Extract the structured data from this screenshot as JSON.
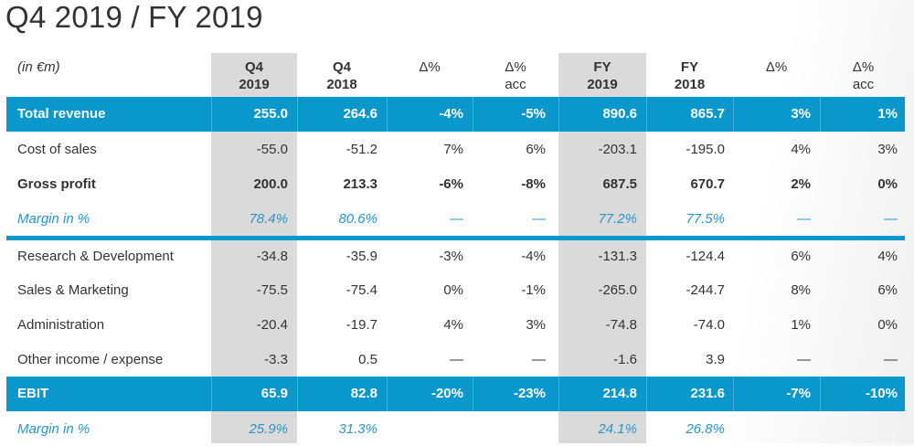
{
  "title": "Q4 2019 / FY 2019",
  "table": {
    "unit_label": "(in €m)",
    "columns": [
      {
        "line1": "Q4",
        "line2": "2019",
        "bold": true,
        "highlighted": true
      },
      {
        "line1": "Q4",
        "line2": "2018",
        "bold": true,
        "highlighted": false
      },
      {
        "line1": "Δ%",
        "line2": "",
        "bold": false,
        "highlighted": false
      },
      {
        "line1": "Δ%",
        "line2": "acc",
        "bold": false,
        "highlighted": false
      },
      {
        "line1": "FY",
        "line2": "2019",
        "bold": true,
        "highlighted": true
      },
      {
        "line1": "FY",
        "line2": "2018",
        "bold": true,
        "highlighted": false
      },
      {
        "line1": "Δ%",
        "line2": "",
        "bold": false,
        "highlighted": false
      },
      {
        "line1": "Δ%",
        "line2": "acc",
        "bold": false,
        "highlighted": false
      }
    ],
    "rows": [
      {
        "label": "Total revenue",
        "style": "band",
        "values": [
          "255.0",
          "264.6",
          "-4%",
          "-5%",
          "890.6",
          "865.7",
          "3%",
          "1%"
        ]
      },
      {
        "label": "Cost of sales",
        "style": "normal",
        "values": [
          "-55.0",
          "-51.2",
          "7%",
          "6%",
          "-203.1",
          "-195.0",
          "4%",
          "3%"
        ]
      },
      {
        "label": "Gross profit",
        "style": "bold",
        "values": [
          "200.0",
          "213.3",
          "-6%",
          "-8%",
          "687.5",
          "670.7",
          "2%",
          "0%"
        ]
      },
      {
        "label": "Margin in %",
        "style": "margin",
        "values": [
          "78.4%",
          "80.6%",
          "—",
          "—",
          "77.2%",
          "77.5%",
          "—",
          "—"
        ]
      },
      {
        "label": "Research & Development",
        "style": "normal",
        "values": [
          "-34.8",
          "-35.9",
          "-3%",
          "-4%",
          "-131.3",
          "-124.4",
          "6%",
          "4%"
        ]
      },
      {
        "label": "Sales & Marketing",
        "style": "normal",
        "values": [
          "-75.5",
          "-75.4",
          "0%",
          "-1%",
          "-265.0",
          "-244.7",
          "8%",
          "6%"
        ]
      },
      {
        "label": "Administration",
        "style": "normal",
        "values": [
          "-20.4",
          "-19.7",
          "4%",
          "3%",
          "-74.8",
          "-74.0",
          "1%",
          "0%"
        ]
      },
      {
        "label": "Other income / expense",
        "style": "normal",
        "values": [
          "-3.3",
          "0.5",
          "—",
          "—",
          "-1.6",
          "3.9",
          "—",
          "—"
        ]
      },
      {
        "label": "EBIT",
        "style": "band",
        "values": [
          "65.9",
          "82.8",
          "-20%",
          "-23%",
          "214.8",
          "231.6",
          "-7%",
          "-10%"
        ]
      },
      {
        "label": "Margin in %",
        "style": "margin",
        "values": [
          "25.9%",
          "31.3%",
          "",
          "",
          "24.1%",
          "26.8%",
          "",
          ""
        ]
      }
    ]
  },
  "colors": {
    "accent": "#0a97cc",
    "highlight_column": "#dadada",
    "margin_text": "#2a94c6",
    "text": "#333333"
  }
}
